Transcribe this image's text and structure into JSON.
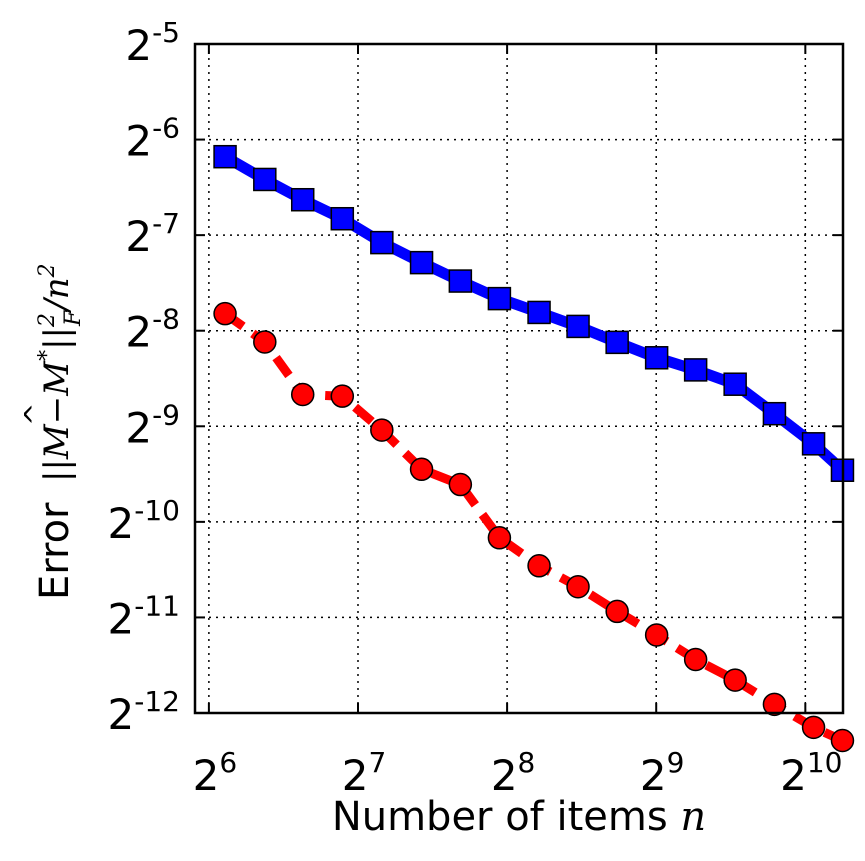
{
  "chart_data": {
    "type": "line",
    "xscale": "log2",
    "yscale": "log2",
    "xlabel": {
      "prefix": "Number of items ",
      "var": "n"
    },
    "ylabel": {
      "prefix": "Error",
      "formula_parts": [
        "||",
        "M",
        "−",
        "M",
        "*",
        "||",
        "2",
        "F",
        "/",
        "n",
        "2"
      ]
    },
    "xlim": [
      60,
      1220
    ],
    "ylim": [
      0.000244140625,
      0.03125
    ],
    "xticks": [
      {
        "base": "2",
        "exp": "6",
        "value": 64
      },
      {
        "base": "2",
        "exp": "7",
        "value": 128
      },
      {
        "base": "2",
        "exp": "8",
        "value": 256
      },
      {
        "base": "2",
        "exp": "9",
        "value": 512
      },
      {
        "base": "2",
        "exp": "10",
        "value": 1024
      }
    ],
    "yticks": [
      {
        "base": "2",
        "exp": "-5",
        "value": 0.03125
      },
      {
        "base": "2",
        "exp": "-6",
        "value": 0.015625
      },
      {
        "base": "2",
        "exp": "-7",
        "value": 0.0078125
      },
      {
        "base": "2",
        "exp": "-8",
        "value": 0.00390625
      },
      {
        "base": "2",
        "exp": "-9",
        "value": 0.001953125
      },
      {
        "base": "2",
        "exp": "-10",
        "value": 0.0009765625
      },
      {
        "base": "2",
        "exp": "-11",
        "value": 0.00048828125
      },
      {
        "base": "2",
        "exp": "-12",
        "value": 0.000244140625
      }
    ],
    "grid": true,
    "series": [
      {
        "color": "#0000ff",
        "marker": "square",
        "linestyle": "solid",
        "x": [
          69,
          83,
          99,
          119,
          143,
          172,
          206,
          247,
          297,
          356,
          427,
          513,
          615,
          739,
          887,
          1064,
          1217
        ],
        "y": [
          0.0138,
          0.0117,
          0.0101,
          0.0088,
          0.0074,
          0.0064,
          0.0056,
          0.00493,
          0.00446,
          0.00403,
          0.00359,
          0.00321,
          0.00294,
          0.00265,
          0.00214,
          0.00172,
          0.00142
        ]
      },
      {
        "color": "#ff0000",
        "marker": "circle",
        "linestyle": "dashed",
        "x": [
          69,
          83,
          99,
          119,
          143,
          172,
          206,
          247,
          297,
          356,
          427,
          513,
          615,
          739,
          887,
          1064,
          1217
        ],
        "y": [
          0.00442,
          0.0036,
          0.00246,
          0.00243,
          0.0019,
          0.00143,
          0.00128,
          0.00087,
          0.00071,
          0.00061,
          0.00051,
          0.00043,
          0.00036,
          0.00031,
          0.00026,
          0.00022,
          0.0002
        ]
      }
    ]
  }
}
